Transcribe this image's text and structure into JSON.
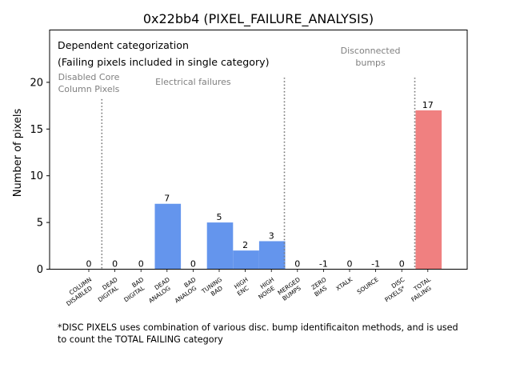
{
  "chart_data": {
    "type": "bar",
    "title": "0x22bb4 (PIXEL_FAILURE_ANALYSIS)",
    "xlabel": "",
    "ylabel": "Number of pixels",
    "ylim": [
      0,
      25.6
    ],
    "yticks": [
      0,
      5,
      10,
      15,
      20
    ],
    "grid": false,
    "categories": [
      [
        "COLUMN",
        "DISABLED"
      ],
      [
        "DEAD",
        "DIGITAL"
      ],
      [
        "BAD",
        "DIGITAL"
      ],
      [
        "DEAD",
        "ANALOG"
      ],
      [
        "BAD",
        "ANALOG"
      ],
      [
        "TUNING",
        "BAD"
      ],
      [
        "HIGH",
        "ENC"
      ],
      [
        "HIGH",
        "NOISE"
      ],
      [
        "MERGED",
        "BUMPS"
      ],
      [
        "ZERO",
        "BIAS"
      ],
      [
        "XTALK"
      ],
      [
        "SOURCE"
      ],
      [
        "DISC",
        "PIXELS*"
      ],
      [
        "TOTAL",
        "FAILING"
      ]
    ],
    "values": [
      0,
      0,
      0,
      7,
      0,
      5,
      2,
      3,
      0,
      -1,
      0,
      -1,
      0,
      17
    ],
    "bar_colors": [
      "#6495ed",
      "#6495ed",
      "#6495ed",
      "#6495ed",
      "#6495ed",
      "#6495ed",
      "#6495ed",
      "#6495ed",
      "#6495ed",
      "#6495ed",
      "#6495ed",
      "#6495ed",
      "#6495ed",
      "#f08080"
    ],
    "header_lines": [
      "Dependent categorization",
      "(Failing pixels included in single category)"
    ],
    "group_labels": [
      {
        "lines": [
          "Disabled Core",
          "Column Pixels"
        ],
        "anchor": 0
      },
      {
        "lines": [
          "Electrical failures"
        ],
        "anchor": 4
      },
      {
        "lines": [
          "Disconnected",
          "bumps"
        ],
        "anchor": 10.8
      }
    ],
    "separators": [
      {
        "after": 0,
        "top": 18.2
      },
      {
        "after": 7,
        "top": 20.5
      },
      {
        "after": 12,
        "top": 20.5
      }
    ]
  },
  "footnote": {
    "line1": "*DISC PIXELS uses combination of various disc. bump identificaiton methods, and is used",
    "line2": "to count the TOTAL FAILING category"
  }
}
